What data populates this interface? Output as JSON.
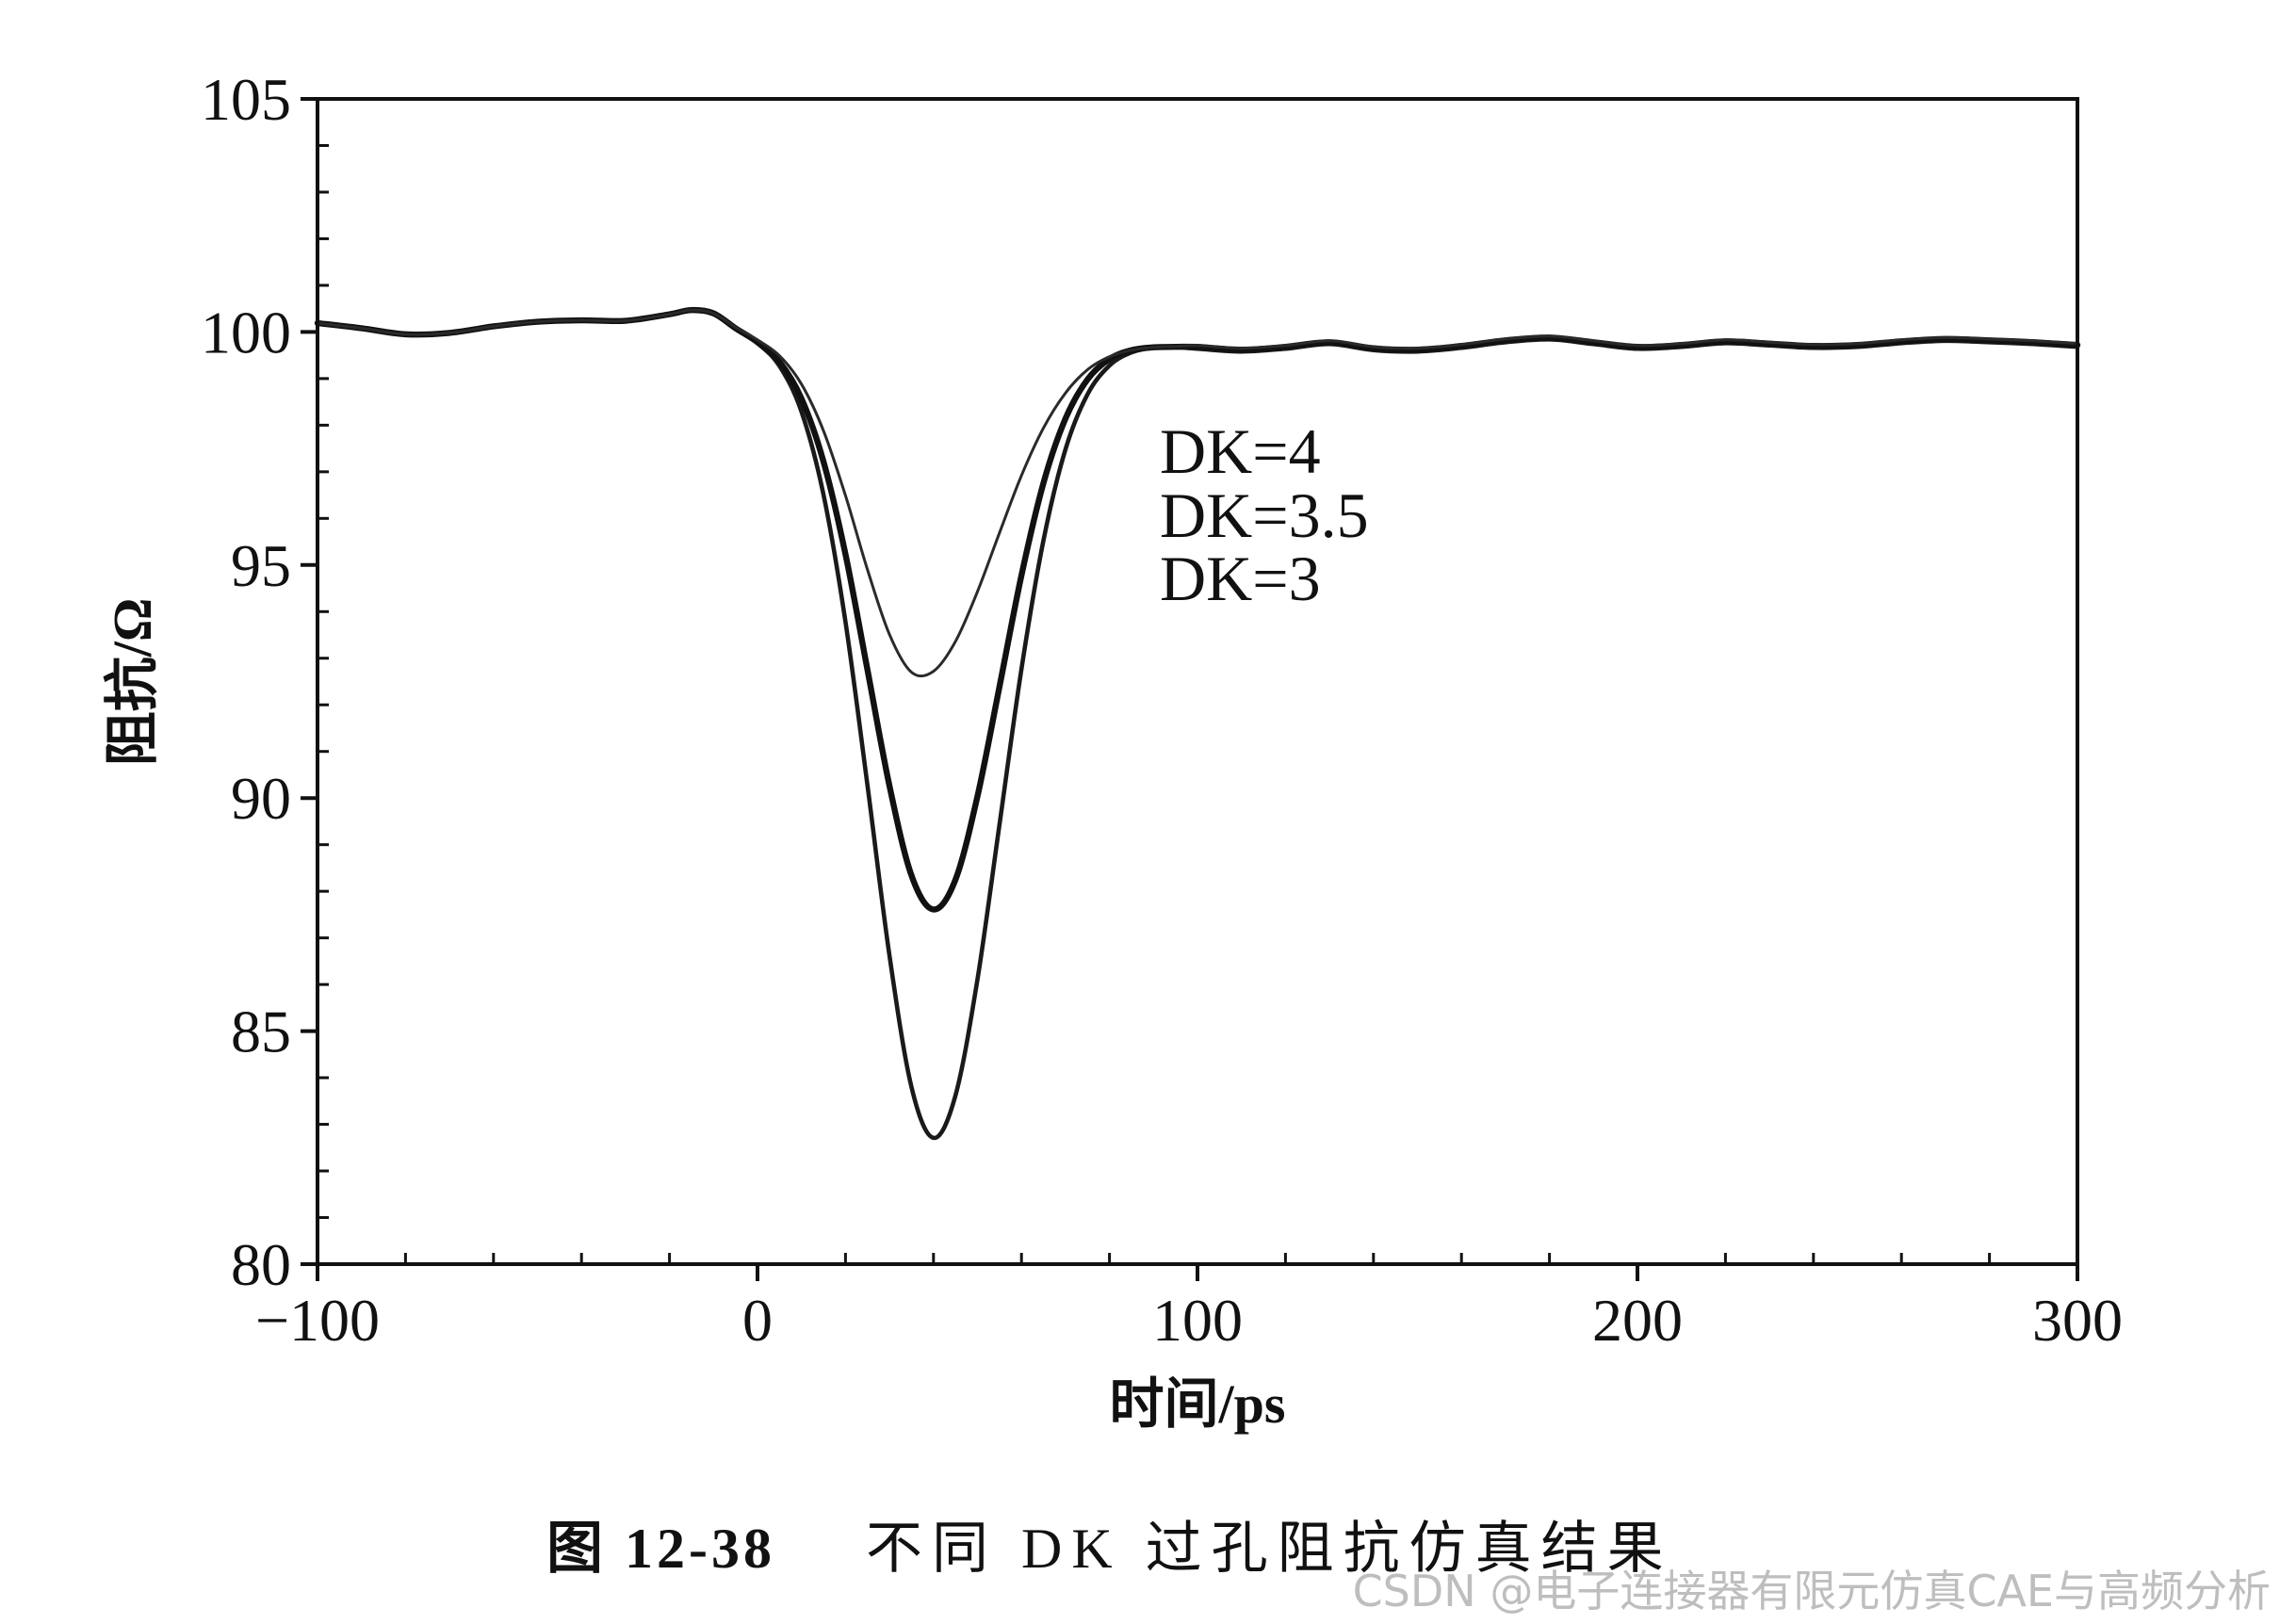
{
  "chart_data": {
    "type": "line",
    "xlabel": "时间/ps",
    "ylabel": "阻抗/Ω",
    "xlim": [
      -100,
      300
    ],
    "ylim": [
      80,
      105
    ],
    "xticks": [
      -100,
      0,
      100,
      200,
      300
    ],
    "xtick_labels": [
      "−100",
      "0",
      "100",
      "200",
      "300"
    ],
    "x_minor_step": 20,
    "yticks": [
      80,
      85,
      90,
      95,
      100,
      105
    ],
    "ytick_labels": [
      "80",
      "85",
      "90",
      "95",
      "100",
      "105"
    ],
    "y_minor_step": 1,
    "grid": false,
    "legend_position": "upper-center",
    "x": [
      -100,
      -90,
      -80,
      -70,
      -60,
      -50,
      -40,
      -30,
      -20,
      -15,
      -10,
      -5,
      0,
      5,
      10,
      15,
      20,
      25,
      30,
      35,
      40,
      45,
      50,
      55,
      60,
      65,
      70,
      75,
      80,
      85,
      90,
      95,
      100,
      110,
      120,
      130,
      140,
      150,
      160,
      170,
      180,
      190,
      200,
      210,
      220,
      230,
      240,
      250,
      260,
      270,
      280,
      290,
      300
    ],
    "series": [
      {
        "name": "DK=4",
        "color": "#1a1a1a",
        "values": [
          100.19,
          100.08,
          99.95,
          99.98,
          100.12,
          100.22,
          100.25,
          100.24,
          100.38,
          100.47,
          100.4,
          100.08,
          99.76,
          99.27,
          98.29,
          96.51,
          93.78,
          90.27,
          86.62,
          83.8,
          82.71,
          83.62,
          86.11,
          89.43,
          92.77,
          95.53,
          97.48,
          98.66,
          99.28,
          99.56,
          99.66,
          99.67,
          99.64,
          99.58,
          99.64,
          99.74,
          99.61,
          99.58,
          99.66,
          99.78,
          99.84,
          99.74,
          99.64,
          99.68,
          99.76,
          99.71,
          99.66,
          99.68,
          99.76,
          99.81,
          99.78,
          99.74,
          99.68
        ]
      },
      {
        "name": "DK=3.5",
        "color": "#111111",
        "values": [
          100.19,
          100.08,
          99.95,
          99.98,
          100.12,
          100.22,
          100.25,
          100.24,
          100.38,
          100.47,
          100.4,
          100.08,
          99.78,
          99.36,
          98.57,
          97.22,
          95.23,
          92.75,
          90.26,
          88.34,
          87.61,
          88.25,
          90.04,
          92.39,
          94.78,
          96.76,
          98.14,
          98.98,
          99.42,
          99.61,
          99.67,
          99.68,
          99.68,
          99.62,
          99.68,
          99.78,
          99.65,
          99.62,
          99.7,
          99.82,
          99.88,
          99.78,
          99.68,
          99.72,
          99.8,
          99.75,
          99.7,
          99.72,
          99.8,
          99.85,
          99.82,
          99.78,
          99.72
        ]
      },
      {
        "name": "DK=3",
        "color": "#2a2a2a",
        "values": [
          100.19,
          100.08,
          99.95,
          99.98,
          100.12,
          100.22,
          100.25,
          100.24,
          100.38,
          100.47,
          100.4,
          100.1,
          99.83,
          99.49,
          98.88,
          97.88,
          96.49,
          94.9,
          93.51,
          92.7,
          92.72,
          93.36,
          94.43,
          95.69,
          96.92,
          97.94,
          98.69,
          99.19,
          99.47,
          99.61,
          99.67,
          99.69,
          99.71,
          99.65,
          99.71,
          99.81,
          99.68,
          99.65,
          99.73,
          99.85,
          99.91,
          99.81,
          99.71,
          99.75,
          99.83,
          99.78,
          99.73,
          99.75,
          99.83,
          99.88,
          99.85,
          99.81,
          99.75
        ]
      }
    ]
  },
  "caption": {
    "number": "图 12-38",
    "text": "不同 DK 过孔阻抗仿真结果"
  },
  "watermark": "CSDN @电子连接器有限元仿真CAE与高频分析"
}
